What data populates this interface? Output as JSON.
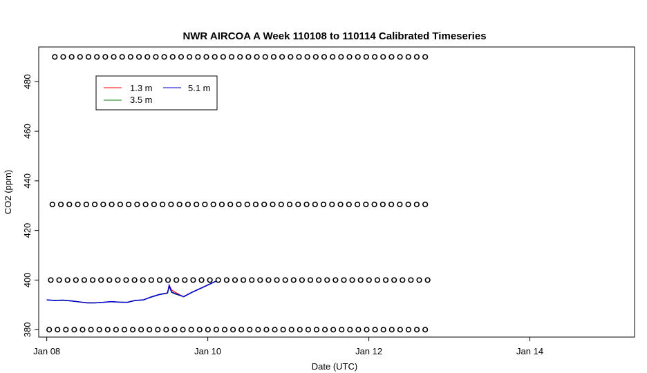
{
  "chart_data": {
    "type": "line",
    "title": "NWR AIRCOA A  Week 110108 to 110114  Calibrated Timeseries",
    "xlabel": "Date (UTC)",
    "ylabel": "CO2 (ppm)",
    "xlim": [
      -0.1,
      7.3
    ],
    "ylim": [
      377,
      494
    ],
    "x_ticks": [
      {
        "value": 0,
        "label": "Jan 08"
      },
      {
        "value": 2,
        "label": "Jan 10"
      },
      {
        "value": 4,
        "label": "Jan 12"
      },
      {
        "value": 6,
        "label": "Jan 14"
      }
    ],
    "y_ticks": [
      380,
      400,
      420,
      440,
      460,
      480
    ],
    "grid": false,
    "legend_position": "top-left",
    "series": [
      {
        "name": "1.3 m",
        "color": "#ff0000",
        "x": [
          0.0,
          0.1,
          0.2,
          0.3,
          0.4,
          0.5,
          0.6,
          0.7,
          0.8,
          0.9,
          1.0,
          1.1,
          1.2,
          1.3,
          1.4,
          1.5,
          1.52,
          1.55,
          1.6,
          1.7,
          1.8,
          1.9,
          2.0,
          2.1
        ],
        "y": [
          392.0,
          391.8,
          391.9,
          391.6,
          391.2,
          390.9,
          390.8,
          391.0,
          391.3,
          391.1,
          391.0,
          391.8,
          392.0,
          393.2,
          394.2,
          394.8,
          398.0,
          396.0,
          395.0,
          393.2,
          395.0,
          396.5,
          398.0,
          399.5
        ]
      },
      {
        "name": "3.5 m",
        "color": "#008000",
        "x": [
          0.0,
          0.1,
          0.2,
          0.3,
          0.4,
          0.5,
          0.6,
          0.7,
          0.8,
          0.9,
          1.0,
          1.1,
          1.2,
          1.3,
          1.4,
          1.5,
          1.52,
          1.55,
          1.6,
          1.7,
          1.8,
          1.9,
          2.0,
          2.1
        ],
        "y": [
          392.0,
          391.7,
          391.8,
          391.6,
          391.2,
          390.8,
          390.8,
          391.0,
          391.3,
          391.1,
          391.0,
          391.7,
          392.0,
          393.1,
          394.1,
          394.7,
          397.5,
          395.0,
          394.3,
          393.3,
          395.0,
          396.5,
          398.0,
          399.5
        ]
      },
      {
        "name": "5.1 m",
        "color": "#0000cc",
        "x": [
          0.0,
          0.1,
          0.2,
          0.3,
          0.4,
          0.5,
          0.6,
          0.7,
          0.8,
          0.9,
          1.0,
          1.1,
          1.2,
          1.3,
          1.4,
          1.5,
          1.52,
          1.55,
          1.6,
          1.7,
          1.8,
          1.9,
          2.0,
          2.1
        ],
        "y": [
          392.0,
          391.8,
          391.9,
          391.6,
          391.2,
          390.8,
          390.8,
          391.0,
          391.3,
          391.1,
          391.0,
          391.8,
          392.0,
          393.2,
          394.2,
          394.8,
          397.8,
          395.2,
          394.5,
          393.3,
          395.0,
          396.5,
          398.0,
          399.5
        ]
      }
    ],
    "marker_rows": [
      {
        "y": 490.0,
        "x_start": 0.1,
        "x_end": 4.7,
        "count": 45
      },
      {
        "y": 430.5,
        "x_start": 0.07,
        "x_end": 4.7,
        "count": 45
      },
      {
        "y": 400.0,
        "x_start": 0.05,
        "x_end": 4.73,
        "count": 46
      },
      {
        "y": 380.0,
        "x_start": 0.03,
        "x_end": 4.7,
        "count": 46
      }
    ]
  }
}
